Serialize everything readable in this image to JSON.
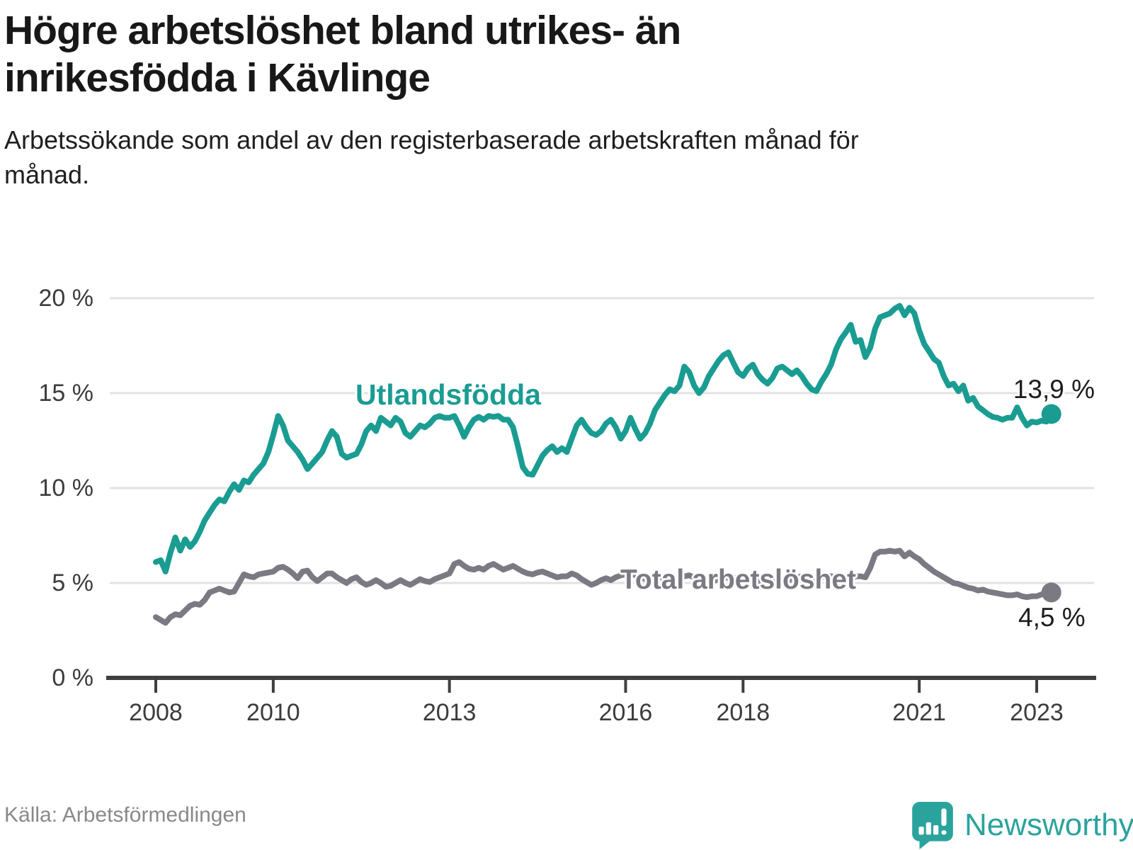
{
  "header": {
    "title": "Högre arbetslöshet bland utrikes- än inrikesfödda i Kävlinge",
    "subtitle": "Arbetssökande som andel av den registerbaserade arbetskraften månad för månad."
  },
  "footer": {
    "source": "Källa: Arbetsförmedlingen",
    "brand": "Newsworthy",
    "logo_icon": "newsworthy-speech-bubble-bar-chart-icon"
  },
  "colors": {
    "foreign_born_line": "#1a9c92",
    "total_line": "#7b7982",
    "axis": "#3f3f3f",
    "gridline": "#e2e2e2",
    "tick_text": "#3c3c3c",
    "brand_teal": "#2ba39d"
  },
  "chart_data": {
    "type": "line",
    "title": "Högre arbetslöshet bland utrikes- än inrikesfödda i Kävlinge",
    "subtitle": "Arbetssökande som andel av den registerbaserade arbetskraften månad för månad.",
    "source": "Källa: Arbetsförmedlingen",
    "x_start": "2008-01",
    "x_end": "2023-04",
    "x_frequency": "monthly",
    "grid": "horizontal",
    "legend": "inline-labels",
    "ylim": [
      0,
      20.5
    ],
    "x_ticks": [
      {
        "label": "2008",
        "year": 2008
      },
      {
        "label": "2010",
        "year": 2010
      },
      {
        "label": "2013",
        "year": 2013
      },
      {
        "label": "2016",
        "year": 2016
      },
      {
        "label": "2018",
        "year": 2018
      },
      {
        "label": "2021",
        "year": 2021
      },
      {
        "label": "2023",
        "year": 2023
      }
    ],
    "y_ticks": [
      {
        "label": "0 %",
        "value": 0
      },
      {
        "label": "5 %",
        "value": 5
      },
      {
        "label": "10 %",
        "value": 10
      },
      {
        "label": "15 %",
        "value": 15
      },
      {
        "label": "20 %",
        "value": 20
      }
    ],
    "series": [
      {
        "id": "utlandsfodda",
        "name": "Utlandsfödda",
        "color": "#1a9c92",
        "end_label": "13,9 %",
        "end_value": 13.9,
        "values": [
          6.1,
          6.2,
          5.6,
          6.6,
          7.4,
          6.7,
          7.3,
          6.9,
          7.2,
          7.7,
          8.3,
          8.7,
          9.1,
          9.4,
          9.3,
          9.8,
          10.2,
          9.9,
          10.4,
          10.3,
          10.7,
          11.0,
          11.3,
          11.9,
          12.8,
          13.8,
          13.3,
          12.5,
          12.2,
          11.9,
          11.5,
          11.0,
          11.3,
          11.6,
          11.9,
          12.5,
          13.0,
          12.7,
          11.8,
          11.6,
          11.7,
          11.8,
          12.3,
          13.0,
          13.3,
          13.0,
          13.7,
          13.5,
          13.3,
          13.7,
          13.5,
          12.9,
          12.7,
          13.0,
          13.3,
          13.2,
          13.4,
          13.7,
          13.8,
          13.7,
          13.7,
          13.8,
          13.3,
          12.7,
          13.2,
          13.6,
          13.75,
          13.6,
          13.8,
          13.75,
          13.8,
          13.6,
          13.6,
          13.2,
          12.2,
          11.1,
          10.75,
          10.7,
          11.2,
          11.7,
          12.0,
          12.2,
          11.9,
          12.1,
          11.9,
          12.6,
          13.3,
          13.6,
          13.2,
          12.9,
          12.8,
          13.0,
          13.4,
          13.6,
          13.2,
          12.6,
          13.0,
          13.7,
          13.1,
          12.6,
          12.9,
          13.4,
          14.1,
          14.5,
          14.9,
          15.2,
          15.1,
          15.4,
          16.4,
          16.1,
          15.4,
          15.0,
          15.3,
          15.9,
          16.3,
          16.7,
          17.0,
          17.15,
          16.6,
          16.1,
          15.9,
          16.3,
          16.5,
          16.0,
          15.7,
          15.5,
          15.8,
          16.3,
          16.4,
          16.2,
          16.0,
          16.2,
          15.9,
          15.5,
          15.2,
          15.1,
          15.6,
          16.0,
          16.5,
          17.3,
          17.85,
          18.2,
          18.6,
          17.7,
          17.8,
          16.9,
          17.4,
          18.4,
          19.0,
          19.1,
          19.2,
          19.45,
          19.6,
          19.1,
          19.5,
          19.2,
          18.3,
          17.6,
          17.2,
          16.8,
          16.6,
          15.9,
          15.4,
          15.5,
          15.1,
          15.4,
          14.6,
          14.75,
          14.3,
          14.1,
          13.9,
          13.75,
          13.7,
          13.6,
          13.7,
          13.7,
          14.25,
          13.7,
          13.3,
          13.5,
          13.45,
          13.55,
          13.5,
          13.9
        ]
      },
      {
        "id": "total-arbetsloshet",
        "name": "Total arbetslöshet",
        "color": "#7b7982",
        "end_label": "4,5 %",
        "end_value": 4.5,
        "values": [
          3.2,
          3.05,
          2.9,
          3.2,
          3.35,
          3.3,
          3.55,
          3.8,
          3.9,
          3.85,
          4.1,
          4.5,
          4.6,
          4.7,
          4.6,
          4.5,
          4.55,
          5.0,
          5.45,
          5.35,
          5.3,
          5.45,
          5.5,
          5.55,
          5.6,
          5.8,
          5.85,
          5.7,
          5.5,
          5.25,
          5.6,
          5.65,
          5.3,
          5.1,
          5.3,
          5.5,
          5.5,
          5.3,
          5.15,
          5.0,
          5.2,
          5.3,
          5.05,
          4.9,
          5.0,
          5.15,
          5.0,
          4.8,
          4.85,
          5.0,
          5.15,
          5.0,
          4.9,
          5.05,
          5.2,
          5.1,
          5.05,
          5.2,
          5.3,
          5.4,
          5.5,
          6.0,
          6.1,
          5.9,
          5.75,
          5.7,
          5.8,
          5.7,
          5.9,
          6.0,
          5.85,
          5.7,
          5.8,
          5.9,
          5.75,
          5.6,
          5.5,
          5.45,
          5.55,
          5.6,
          5.5,
          5.4,
          5.3,
          5.35,
          5.35,
          5.5,
          5.4,
          5.2,
          5.05,
          4.9,
          5.0,
          5.15,
          5.25,
          5.15,
          5.3,
          5.4,
          5.45,
          5.5,
          5.4,
          5.3,
          5.2,
          5.1,
          5.2,
          5.3,
          5.25,
          5.15,
          5.2,
          5.3,
          5.35,
          5.4,
          5.3,
          5.2,
          5.1,
          5.0,
          5.1,
          5.2,
          5.3,
          5.25,
          5.2,
          5.3,
          5.35,
          5.3,
          5.2,
          5.1,
          5.0,
          4.95,
          5.05,
          5.15,
          5.2,
          5.1,
          5.2,
          5.3,
          5.35,
          5.3,
          5.25,
          5.2,
          5.3,
          5.4,
          5.35,
          5.3,
          5.4,
          5.3,
          5.2,
          5.35,
          5.35,
          5.3,
          5.8,
          6.5,
          6.65,
          6.65,
          6.7,
          6.65,
          6.7,
          6.4,
          6.6,
          6.4,
          6.25,
          6.0,
          5.8,
          5.6,
          5.45,
          5.3,
          5.15,
          5.0,
          4.95,
          4.85,
          4.75,
          4.7,
          4.6,
          4.65,
          4.55,
          4.5,
          4.45,
          4.4,
          4.35,
          4.35,
          4.4,
          4.3,
          4.25,
          4.3,
          4.3,
          4.4,
          4.45,
          4.5
        ]
      }
    ]
  }
}
